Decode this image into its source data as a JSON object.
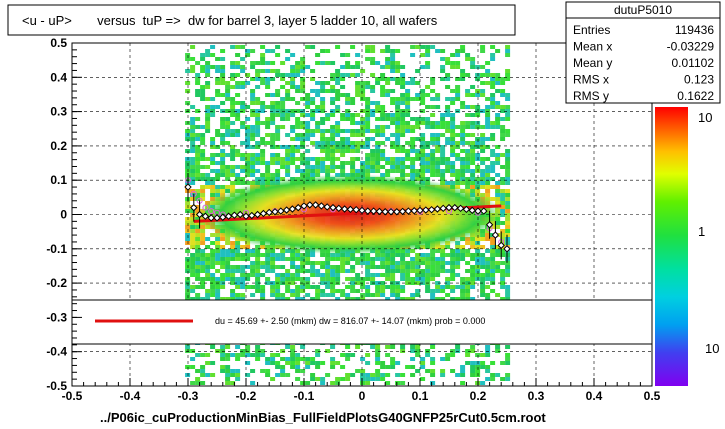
{
  "title": "<u - uP>       versus  tuP =>  dw for barrel 3, layer 5 ladder 10, all wafers",
  "footer": "../P06ic_cuProductionMinBias_FullFieldPlotsG40GNFP25rCut0.5cm.root",
  "stats": {
    "name": "dutuP5010",
    "rows": [
      {
        "label": "Entries",
        "value": "119436"
      },
      {
        "label": "Mean x",
        "value": "-0.03229"
      },
      {
        "label": "Mean y",
        "value": "0.01102"
      },
      {
        "label": "RMS x",
        "value": "0.123"
      },
      {
        "label": "RMS y",
        "value": "0.1622"
      }
    ]
  },
  "legend": {
    "fit_text": "du =   45.69 +-  2.50 (mkm) dw =  816.07 +- 14.07 (mkm) prob = 0.000"
  },
  "palette_labels": [
    "10",
    "1",
    "10"
  ],
  "colors": {
    "frame": "#000000",
    "fit_line": "#e01010",
    "profile_black": "#000000",
    "profile_pink": "#e060e0",
    "background": "#ffffff"
  },
  "chart_data": {
    "type": "heatmap",
    "title": "<u - uP>       versus  tuP =>  dw for barrel 3, layer 5 ladder 10, all wafers",
    "xlabel": "../P06ic_cuProductionMinBias_FullFieldPlotsG40GNFP25rCut0.5cm.root",
    "ylabel": "",
    "xlim": [
      -0.5,
      0.5
    ],
    "ylim": [
      -0.5,
      0.5
    ],
    "x_ticks": [
      "-0.5",
      "-0.4",
      "-0.3",
      "-0.2",
      "-0.1",
      "0",
      "0.1",
      "0.2",
      "0.3",
      "0.4",
      "0.5"
    ],
    "y_ticks": [
      "-0.5",
      "-0.4",
      "-0.3",
      "-0.2",
      "-0.1",
      "0",
      "0.1",
      "0.2",
      "0.3",
      "0.4",
      "0.5"
    ],
    "grid": true,
    "colorbar": {
      "scale": "log",
      "tick_labels": [
        "10",
        "1",
        "10"
      ]
    },
    "fit_line": {
      "x": [
        -0.29,
        0.24
      ],
      "y": [
        -0.02,
        0.025
      ]
    },
    "profile_black": {
      "x": [
        -0.3,
        -0.29,
        -0.28,
        -0.27,
        -0.26,
        -0.25,
        -0.24,
        -0.23,
        -0.22,
        -0.21,
        -0.2,
        -0.19,
        -0.18,
        -0.17,
        -0.16,
        -0.15,
        -0.14,
        -0.13,
        -0.12,
        -0.11,
        -0.1,
        -0.09,
        -0.08,
        -0.07,
        -0.06,
        -0.05,
        -0.04,
        -0.03,
        -0.02,
        -0.01,
        0.0,
        0.01,
        0.02,
        0.03,
        0.04,
        0.05,
        0.06,
        0.07,
        0.08,
        0.09,
        0.1,
        0.11,
        0.12,
        0.13,
        0.14,
        0.15,
        0.16,
        0.17,
        0.18,
        0.19,
        0.2,
        0.21,
        0.22,
        0.23,
        0.24,
        0.25
      ],
      "y": [
        0.08,
        0.02,
        0.0,
        -0.005,
        -0.01,
        -0.01,
        -0.008,
        -0.005,
        -0.002,
        0.0,
        -0.005,
        -0.003,
        0.0,
        0.003,
        0.006,
        0.008,
        0.01,
        0.013,
        0.016,
        0.02,
        0.025,
        0.028,
        0.028,
        0.025,
        0.022,
        0.02,
        0.018,
        0.016,
        0.015,
        0.014,
        0.012,
        0.01,
        0.01,
        0.009,
        0.008,
        0.008,
        0.008,
        0.009,
        0.01,
        0.011,
        0.012,
        0.013,
        0.014,
        0.016,
        0.018,
        0.02,
        0.02,
        0.018,
        0.015,
        0.012,
        0.01,
        0.01,
        -0.03,
        -0.06,
        -0.09,
        -0.1
      ]
    },
    "profile_pink": {
      "x": [
        -0.3,
        -0.29,
        -0.28,
        -0.27,
        -0.26,
        -0.25,
        -0.24,
        -0.2,
        -0.15,
        -0.1,
        -0.05,
        0.0,
        0.05,
        0.1,
        0.15,
        0.2,
        0.22,
        0.23,
        0.24,
        0.25
      ],
      "y": [
        0.1,
        0.06,
        0.04,
        0.02,
        0.01,
        0.005,
        0.0,
        0.005,
        0.01,
        0.015,
        0.015,
        0.012,
        0.01,
        0.008,
        0.01,
        0.005,
        -0.04,
        -0.06,
        -0.08,
        -0.1
      ]
    }
  }
}
